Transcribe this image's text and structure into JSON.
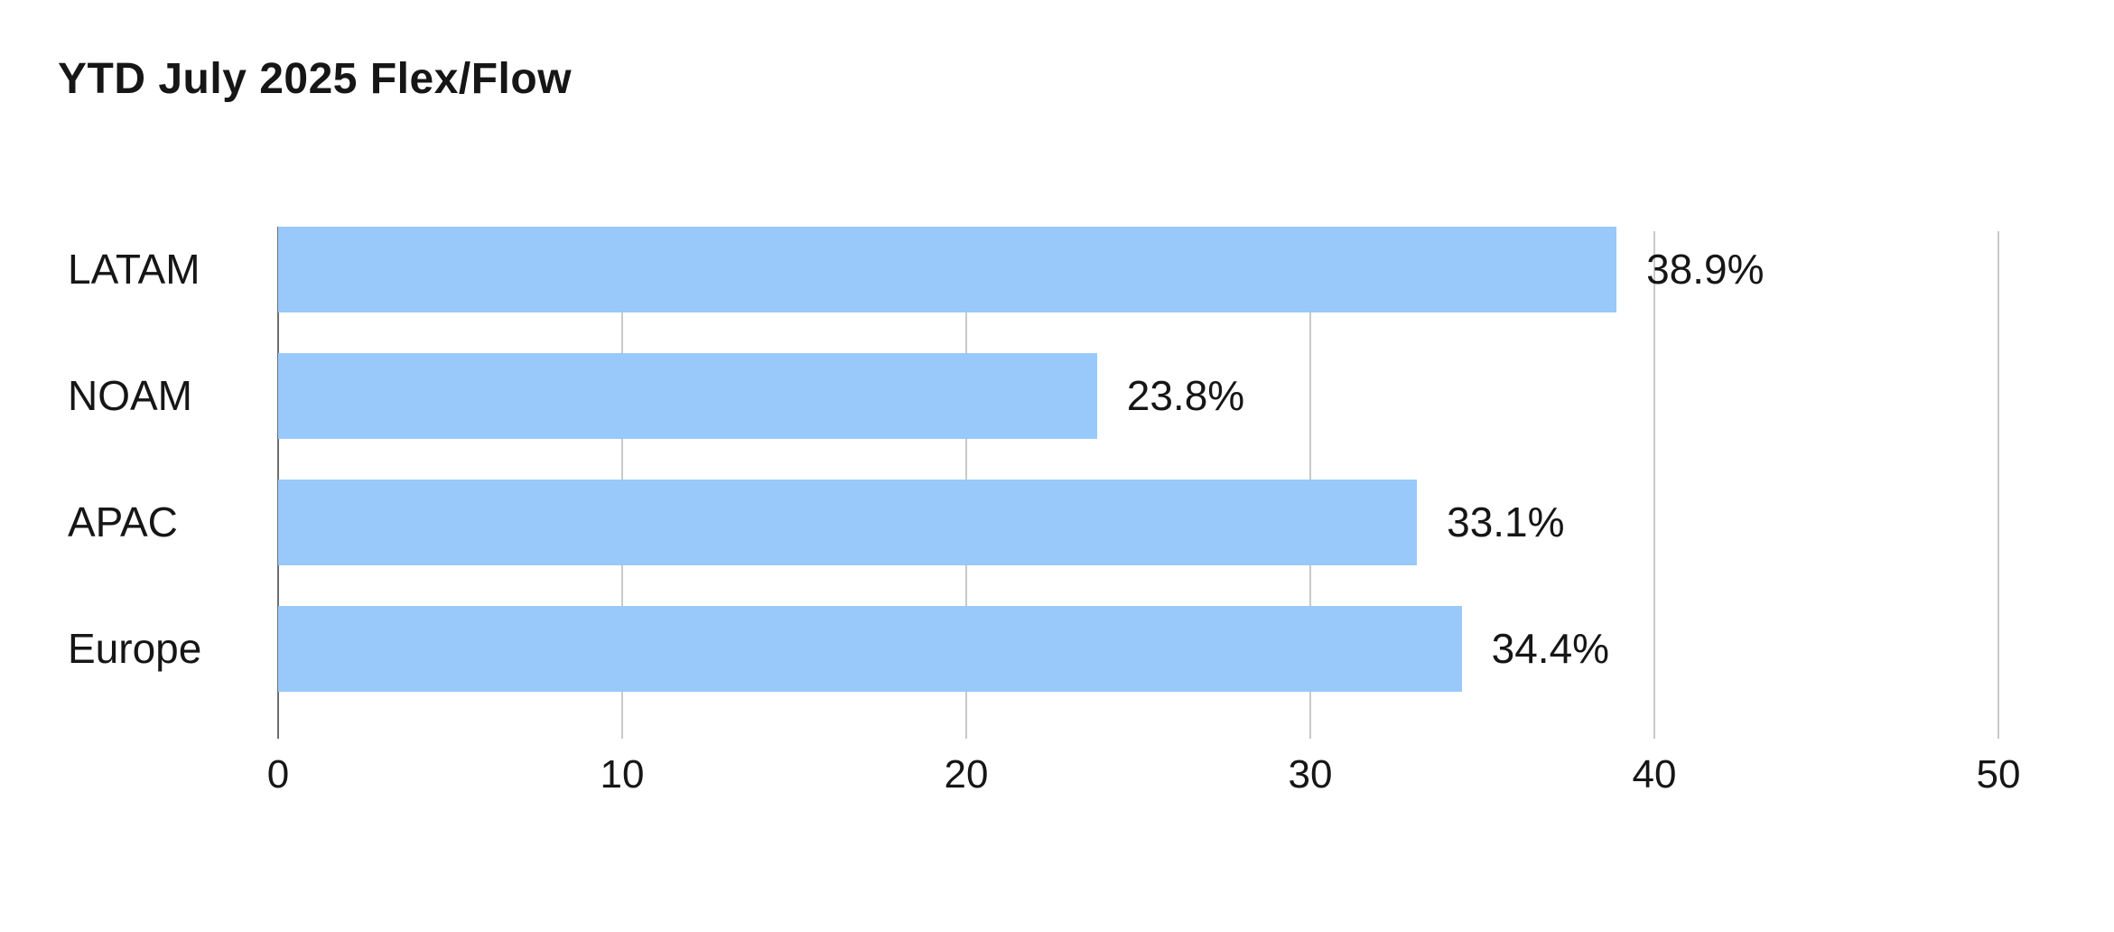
{
  "title": "YTD July 2025 Flex/Flow",
  "chart_data": {
    "type": "bar",
    "orientation": "horizontal",
    "title": "YTD July 2025 Flex/Flow",
    "categories": [
      "LATAM",
      "NOAM",
      "APAC",
      "Europe"
    ],
    "values": [
      38.9,
      23.8,
      33.1,
      34.4
    ],
    "value_labels": [
      "38.9%",
      "23.8%",
      "33.1%",
      "34.4%"
    ],
    "xlabel": "",
    "ylabel": "",
    "xlim": [
      0,
      50
    ],
    "xticks": [
      0,
      10,
      20,
      30,
      40,
      50
    ],
    "xtick_labels": [
      "0",
      "10",
      "20",
      "30",
      "40",
      "50"
    ],
    "grid": true,
    "legend": false,
    "colors": {
      "bar": "#98C9FA",
      "text": "#161616",
      "gridline": "#C9C9C9",
      "zero_axis": "#6E6E6E",
      "background": "#FFFFFF"
    }
  }
}
